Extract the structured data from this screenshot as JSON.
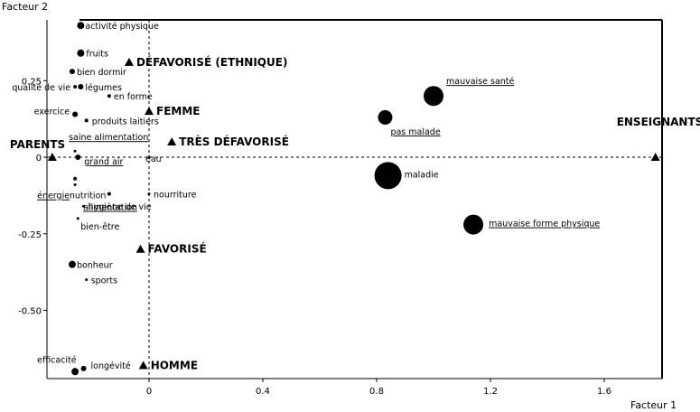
{
  "chart_data": {
    "type": "scatter",
    "xlabel": "Facteur 1",
    "ylabel": "Facteur 2",
    "xlim": [
      -0.36,
      1.8
    ],
    "ylim": [
      -0.73,
      0.43
    ],
    "x_ticks": [
      {
        "value": 0,
        "label": "0"
      },
      {
        "value": 0.4,
        "label": "0.4"
      },
      {
        "value": 0.8,
        "label": "0.8"
      },
      {
        "value": 1.2,
        "label": "1.2"
      },
      {
        "value": 1.6,
        "label": "1.6"
      }
    ],
    "y_ticks": [
      {
        "value": 0.25,
        "label": "0.25"
      },
      {
        "value": 0,
        "label": "0"
      },
      {
        "value": -0.25,
        "label": "-0.25"
      },
      {
        "value": -0.5,
        "label": "-0.50"
      }
    ],
    "groups": [
      {
        "name": "PARENTS",
        "x": -0.34,
        "y": 0.0
      },
      {
        "name": "ENSEIGNANTS",
        "x": 1.78,
        "y": 0.0
      },
      {
        "name": "DÉFAVORISÉ (ETHNIQUE)",
        "x": -0.07,
        "y": 0.31
      },
      {
        "name": "FEMME",
        "x": 0.0,
        "y": 0.15
      },
      {
        "name": "TRÈS DÉFAVORISÉ",
        "x": 0.08,
        "y": 0.05
      },
      {
        "name": "FAVORISÉ",
        "x": -0.03,
        "y": -0.3
      },
      {
        "name": "HOMME",
        "x": -0.02,
        "y": -0.68
      }
    ],
    "points": [
      {
        "label": "activité physique",
        "x": -0.24,
        "y": 0.43,
        "size": 4,
        "underline": false
      },
      {
        "label": "fruits",
        "x": -0.24,
        "y": 0.34,
        "size": 4,
        "underline": false
      },
      {
        "label": "bien dormir",
        "x": -0.27,
        "y": 0.28,
        "size": 3,
        "underline": false
      },
      {
        "label": "qualité de vie",
        "x": -0.26,
        "y": 0.23,
        "size": 2,
        "underline": false
      },
      {
        "label": "légumes",
        "x": -0.24,
        "y": 0.23,
        "size": 3,
        "underline": false
      },
      {
        "label": "en forme",
        "x": -0.14,
        "y": 0.2,
        "size": 2,
        "underline": false
      },
      {
        "label": "exercice",
        "x": -0.26,
        "y": 0.14,
        "size": 3,
        "underline": false
      },
      {
        "label": "produits laitiers",
        "x": -0.22,
        "y": 0.12,
        "size": 2,
        "underline": false
      },
      {
        "label": "saine alimentation",
        "x": -0.26,
        "y": 0.02,
        "size": 1.5,
        "underline": true
      },
      {
        "label": "grand air",
        "x": -0.25,
        "y": 0.0,
        "size": 3,
        "underline": true
      },
      {
        "label": "eau",
        "x": 0.0,
        "y": 0.0,
        "size": 1.5,
        "underline": false
      },
      {
        "label": "énergie",
        "x": -0.26,
        "y": -0.07,
        "size": 2,
        "underline": true
      },
      {
        "label": "alimentation",
        "x": -0.26,
        "y": -0.09,
        "size": 1.5,
        "underline": true
      },
      {
        "label": "nutrition",
        "x": -0.14,
        "y": -0.12,
        "size": 2,
        "underline": false
      },
      {
        "label": "nourriture",
        "x": 0.0,
        "y": -0.12,
        "size": 1.5,
        "underline": false
      },
      {
        "label": "hygiène de vie",
        "x": -0.23,
        "y": -0.16,
        "size": 1.5,
        "underline": false
      },
      {
        "label": "bien-être",
        "x": -0.25,
        "y": -0.2,
        "size": 1.5,
        "underline": false
      },
      {
        "label": "bonheur",
        "x": -0.27,
        "y": -0.35,
        "size": 4,
        "underline": false
      },
      {
        "label": "sports",
        "x": -0.22,
        "y": -0.4,
        "size": 1.5,
        "underline": false
      },
      {
        "label": "efficacité",
        "x": -0.26,
        "y": -0.7,
        "size": 4,
        "underline": false
      },
      {
        "label": "longévité",
        "x": -0.23,
        "y": -0.69,
        "size": 3,
        "underline": false
      },
      {
        "label": "mauvaise santé",
        "x": 1.0,
        "y": 0.2,
        "size": 11,
        "underline": true
      },
      {
        "label": "pas malade",
        "x": 0.83,
        "y": 0.13,
        "size": 8,
        "underline": true
      },
      {
        "label": "maladie",
        "x": 0.84,
        "y": -0.06,
        "size": 15,
        "underline": false
      },
      {
        "label": "mauvaise forme physique",
        "x": 1.14,
        "y": -0.22,
        "size": 11,
        "underline": true
      }
    ]
  }
}
